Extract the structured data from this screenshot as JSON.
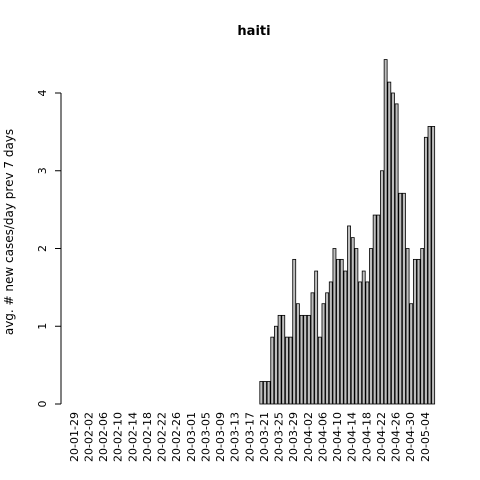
{
  "chart_data": {
    "type": "bar",
    "title": "haiti",
    "xlabel": "",
    "ylabel": "avg. # new cases/day prev  7  days",
    "ylim": [
      0,
      4.6
    ],
    "yticks": [
      0,
      1,
      2,
      3,
      4
    ],
    "grid": false,
    "legend": "none",
    "bar_color": "#bebebe",
    "start_date": "2020-01-29",
    "shown_tick_labels": [
      "20-01-29",
      "20-02-02",
      "20-02-06",
      "20-02-10",
      "20-02-14",
      "20-02-18",
      "20-02-22",
      "20-02-26",
      "20-03-01",
      "20-03-05",
      "20-03-09",
      "20-03-13",
      "20-03-17",
      "20-03-21",
      "20-03-25",
      "20-03-29",
      "20-04-02",
      "20-04-06",
      "20-04-10",
      "20-04-14",
      "20-04-18",
      "20-04-22",
      "20-04-26",
      "20-04-30",
      "20-05-04"
    ],
    "values": [
      0,
      0,
      0,
      0,
      0,
      0,
      0,
      0,
      0,
      0,
      0,
      0,
      0,
      0,
      0,
      0,
      0,
      0,
      0,
      0,
      0,
      0,
      0,
      0,
      0,
      0,
      0,
      0,
      0,
      0,
      0,
      0,
      0,
      0,
      0,
      0,
      0,
      0,
      0,
      0,
      0,
      0,
      0,
      0,
      0,
      0,
      0,
      0,
      0,
      0,
      0,
      0.29,
      0.29,
      0.29,
      0.86,
      1.0,
      1.14,
      1.14,
      0.86,
      0.86,
      1.86,
      1.29,
      1.14,
      1.14,
      1.14,
      1.43,
      1.71,
      0.86,
      1.29,
      1.43,
      1.57,
      2.0,
      1.86,
      1.86,
      1.71,
      2.29,
      2.14,
      2.0,
      1.57,
      1.71,
      1.57,
      2.0,
      2.43,
      2.43,
      3.0,
      4.43,
      4.14,
      4.0,
      3.86,
      2.71,
      2.71,
      2.0,
      1.29,
      1.86,
      1.86,
      2.0,
      3.43,
      3.57,
      3.57
    ]
  }
}
